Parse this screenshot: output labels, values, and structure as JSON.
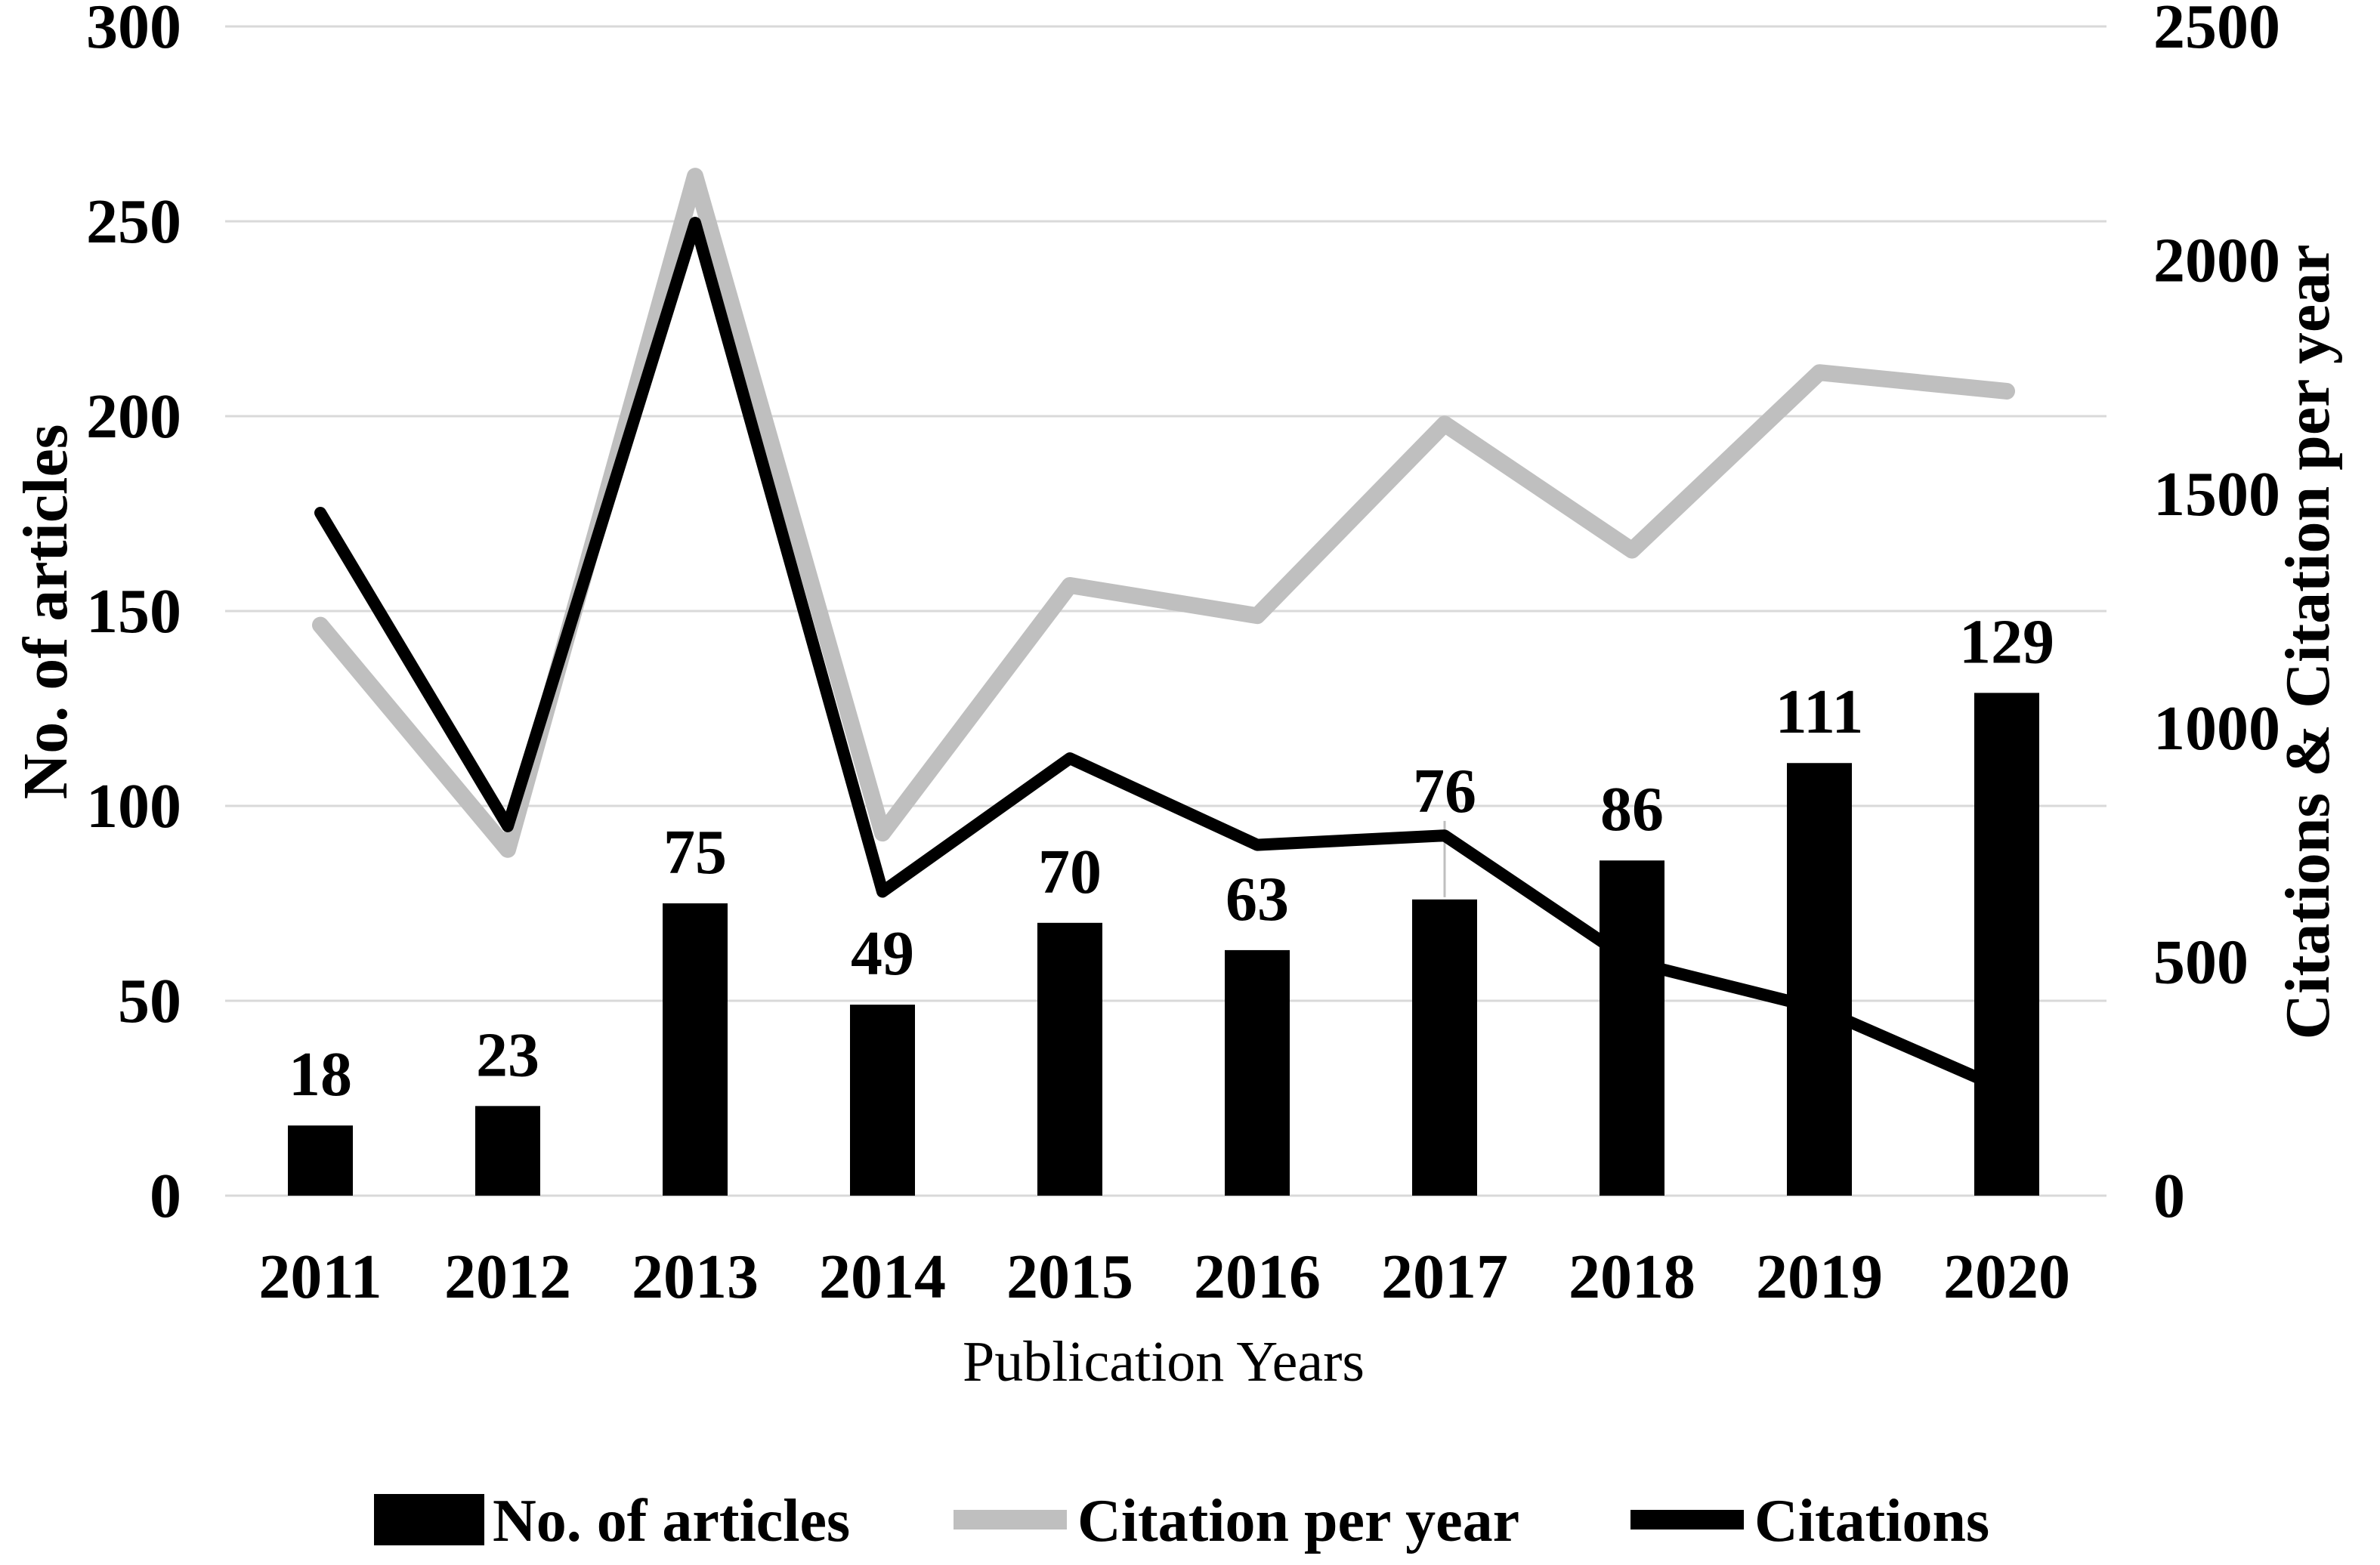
{
  "chart_data": {
    "type": "combo-bar-line",
    "title": "",
    "categories": [
      "2011",
      "2012",
      "2013",
      "2014",
      "2015",
      "2016",
      "2017",
      "2018",
      "2019",
      "2020"
    ],
    "series": [
      {
        "name": "No. of articles",
        "type": "bar",
        "axis": "left",
        "color": "#000000",
        "values": [
          18,
          23,
          75,
          49,
          70,
          63,
          76,
          86,
          111,
          129
        ],
        "data_labels": [
          18,
          23,
          75,
          49,
          70,
          63,
          76,
          86,
          111,
          129
        ]
      },
      {
        "name": "Citation per year",
        "type": "line",
        "axis": "right",
        "color": "#bfbfbf",
        "values": [
          1220,
          740,
          2180,
          775,
          1305,
          1240,
          1650,
          1380,
          1760,
          1720
        ]
      },
      {
        "name": "Citations",
        "type": "line",
        "axis": "right",
        "color": "#000000",
        "values": [
          1460,
          790,
          2080,
          650,
          935,
          750,
          770,
          500,
          400,
          225
        ]
      }
    ],
    "xlabel": "Publication Years",
    "ylabel_left": "No. of articles",
    "ylabel_right": "Citations & Citation per year",
    "ylim_left": [
      0,
      300
    ],
    "ylim_right": [
      0,
      2500
    ],
    "yticks_left": [
      0,
      50,
      100,
      150,
      200,
      250,
      300
    ],
    "yticks_right": [
      0,
      500,
      1000,
      1500,
      2000,
      2500
    ],
    "grid": "horizontal",
    "legend_position": "bottom",
    "colors": {
      "background": "#ffffff",
      "gridline": "#d9d9d9",
      "text": "#000000",
      "leader_line": "#bfbfbf"
    }
  }
}
